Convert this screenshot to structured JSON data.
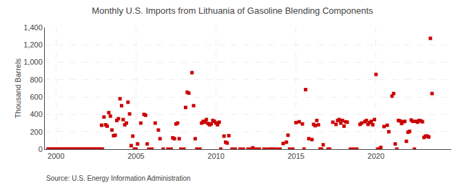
{
  "chart_data": {
    "type": "scatter",
    "title": "Monthly U.S. Imports from Lithuania of Gasoline Blending Components",
    "ylabel": "Thousand Barrels",
    "annotations": [
      "Source: U.S. Energy Information Administration"
    ],
    "color": "#cc0000",
    "marker": "square",
    "grid": true,
    "xlim": [
      1999.3,
      2024.7
    ],
    "xticks": [
      2000,
      2005,
      2010,
      2015,
      2020
    ],
    "ylim": [
      0,
      1400
    ],
    "yticks": [
      0,
      200,
      400,
      600,
      800,
      {
        "value": 1000,
        "label": "1,000"
      },
      {
        "value": 1200,
        "label": "1,200"
      },
      {
        "value": 1400,
        "label": "1,400"
      }
    ],
    "x": [
      1999.5,
      1999.6,
      1999.7,
      1999.8,
      1999.9,
      2000.0,
      2000.1,
      2000.2,
      2000.3,
      2000.4,
      2000.5,
      2000.6,
      2000.7,
      2000.8,
      2000.9,
      2001.0,
      2001.1,
      2001.2,
      2001.3,
      2001.4,
      2001.5,
      2001.6,
      2001.7,
      2001.8,
      2001.9,
      2002.0,
      2002.1,
      2002.2,
      2002.3,
      2002.4,
      2002.5,
      2002.6,
      2002.7,
      2002.8,
      2002.9,
      2002.85,
      2003.0,
      2003.1,
      2003.2,
      2003.3,
      2003.4,
      2003.5,
      2003.6,
      2003.7,
      2003.8,
      2003.9,
      2004.0,
      2004.1,
      2004.2,
      2004.3,
      2004.4,
      2004.5,
      2004.6,
      2004.7,
      2004.8,
      2004.9,
      2005.0,
      2005.1,
      2005.3,
      2005.5,
      2005.6,
      2005.7,
      2005.8,
      2006.0,
      2006.2,
      2006.4,
      2006.5,
      2006.7,
      2007.0,
      2007.2,
      2007.3,
      2007.4,
      2007.5,
      2007.6,
      2007.7,
      2007.8,
      2008.0,
      2008.1,
      2008.2,
      2008.3,
      2008.5,
      2008.6,
      2008.7,
      2008.8,
      2009.0,
      2009.1,
      2009.2,
      2009.3,
      2009.4,
      2009.5,
      2009.6,
      2009.7,
      2009.8,
      2009.9,
      2010.0,
      2010.1,
      2010.2,
      2010.3,
      2010.5,
      2010.6,
      2010.7,
      2010.8,
      2011.0,
      2011.2,
      2011.5,
      2011.7,
      2012.0,
      2012.2,
      2012.3,
      2012.5,
      2012.7,
      2013.0,
      2013.2,
      2013.4,
      2013.5,
      2013.6,
      2013.8,
      2014.0,
      2014.2,
      2014.4,
      2014.5,
      2014.6,
      2014.8,
      2015.0,
      2015.2,
      2015.4,
      2015.5,
      2015.6,
      2015.8,
      2016.0,
      2016.1,
      2016.2,
      2016.3,
      2016.4,
      2016.5,
      2016.6,
      2016.7,
      2017.0,
      2017.1,
      2017.3,
      2017.5,
      2017.6,
      2017.7,
      2017.8,
      2017.9,
      2018.0,
      2018.1,
      2018.2,
      2018.4,
      2018.6,
      2018.8,
      2019.0,
      2019.1,
      2019.3,
      2019.4,
      2019.5,
      2019.6,
      2019.7,
      2019.8,
      2019.9,
      2020.0,
      2020.1,
      2020.2,
      2020.3,
      2020.5,
      2020.7,
      2020.8,
      2021.0,
      2021.1,
      2021.2,
      2021.3,
      2021.4,
      2021.5,
      2021.6,
      2021.7,
      2021.8,
      2021.9,
      2022.0,
      2022.1,
      2022.2,
      2022.3,
      2022.4,
      2022.5,
      2022.6,
      2022.7,
      2022.8,
      2022.9,
      2023.0,
      2023.1,
      2023.2,
      2023.3,
      2023.4,
      2023.5
    ],
    "values": [
      0,
      0,
      0,
      0,
      0,
      0,
      0,
      0,
      0,
      0,
      0,
      0,
      0,
      0,
      0,
      0,
      0,
      0,
      0,
      0,
      0,
      0,
      0,
      0,
      0,
      0,
      0,
      0,
      0,
      0,
      0,
      0,
      0,
      0,
      0,
      275,
      370,
      280,
      265,
      420,
      380,
      220,
      155,
      160,
      330,
      350,
      580,
      500,
      340,
      280,
      300,
      540,
      405,
      40,
      150,
      0,
      0,
      60,
      300,
      400,
      390,
      60,
      0,
      0,
      300,
      220,
      120,
      0,
      0,
      0,
      130,
      120,
      290,
      300,
      120,
      0,
      0,
      480,
      655,
      645,
      880,
      500,
      120,
      0,
      0,
      300,
      320,
      310,
      340,
      295,
      280,
      290,
      330,
      320,
      300,
      280,
      310,
      0,
      150,
      80,
      70,
      155,
      0,
      0,
      0,
      0,
      0,
      0,
      15,
      0,
      0,
      0,
      0,
      0,
      0,
      0,
      0,
      0,
      65,
      80,
      160,
      0,
      0,
      305,
      315,
      290,
      0,
      685,
      120,
      110,
      285,
      270,
      330,
      280,
      0,
      0,
      50,
      0,
      0,
      310,
      285,
      330,
      340,
      300,
      330,
      265,
      315,
      310,
      0,
      0,
      0,
      285,
      300,
      315,
      330,
      285,
      305,
      320,
      280,
      340,
      860,
      0,
      0,
      20,
      260,
      275,
      200,
      610,
      640,
      60,
      0,
      330,
      325,
      295,
      315,
      320,
      90,
      195,
      205,
      335,
      320,
      0,
      320,
      310,
      330,
      325,
      315,
      135,
      150,
      150,
      140,
      1275,
      640
    ]
  }
}
